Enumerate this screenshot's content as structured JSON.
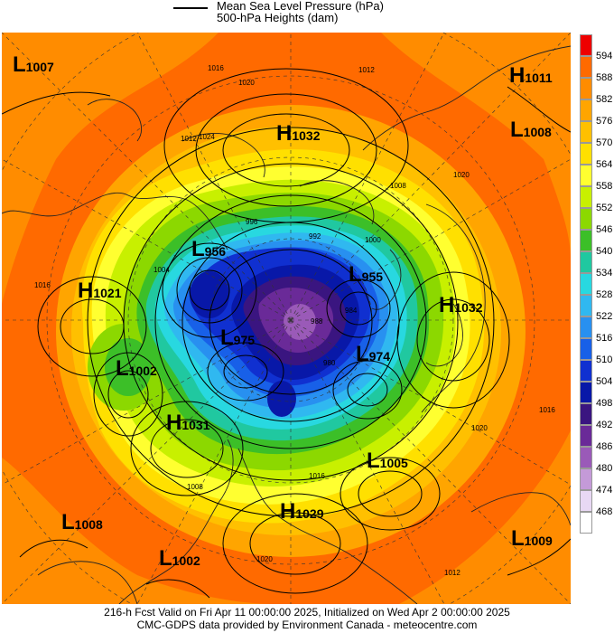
{
  "header": {
    "line1": "Mean Sea Level Pressure (hPa)",
    "line2": "500-hPa Heights (dam)"
  },
  "systems": [
    {
      "letter": "L",
      "value": "1007"
    },
    {
      "letter": "H",
      "value": "1011"
    },
    {
      "letter": "H",
      "value": "1032"
    },
    {
      "letter": "L",
      "value": "1008"
    },
    {
      "letter": "L",
      "value": "956"
    },
    {
      "letter": "L",
      "value": "955"
    },
    {
      "letter": "H",
      "value": "1021"
    },
    {
      "letter": "H",
      "value": "1032"
    },
    {
      "letter": "L",
      "value": "975"
    },
    {
      "letter": "L",
      "value": "974"
    },
    {
      "letter": "L",
      "value": "1002"
    },
    {
      "letter": "H",
      "value": "1031"
    },
    {
      "letter": "L",
      "value": "1005"
    },
    {
      "letter": "H",
      "value": "1029"
    },
    {
      "letter": "L",
      "value": "1008"
    },
    {
      "letter": "L",
      "value": "1009"
    },
    {
      "letter": "L",
      "value": "1002"
    }
  ],
  "isobar_labels": [
    "1016",
    "1020",
    "1024",
    "1012",
    "1008",
    "996",
    "992",
    "1004",
    "1000",
    "988",
    "984",
    "980",
    "1016",
    "1020",
    "1012",
    "1008",
    "1016",
    "1020",
    "1012",
    "1016",
    "1020"
  ],
  "colorbar": {
    "ticks": [
      "594",
      "588",
      "582",
      "576",
      "570",
      "564",
      "558",
      "552",
      "546",
      "540",
      "534",
      "528",
      "522",
      "516",
      "510",
      "504",
      "498",
      "492",
      "486",
      "480",
      "474",
      "468"
    ],
    "colors": [
      "#ee0000",
      "#ff6a00",
      "#ff8c00",
      "#ffa500",
      "#ffc000",
      "#ffe000",
      "#ffff30",
      "#c8f000",
      "#8cd800",
      "#3cbf28",
      "#20c8a0",
      "#28d8e0",
      "#30b8f0",
      "#2890f0",
      "#1860e8",
      "#1030d0",
      "#0818a8",
      "#3a1580",
      "#6a2a98",
      "#9a5ab8",
      "#c49ad8",
      "#e8d8f4",
      "#ffffff"
    ]
  },
  "footer": {
    "line1": "216-h Fcst Valid on Fri Apr 11 00:00:00 2025, Initialized on Wed Apr  2 00:00:00 2025",
    "line2": "CMC-GDPS data provided by Environment Canada - meteocentre.com"
  }
}
